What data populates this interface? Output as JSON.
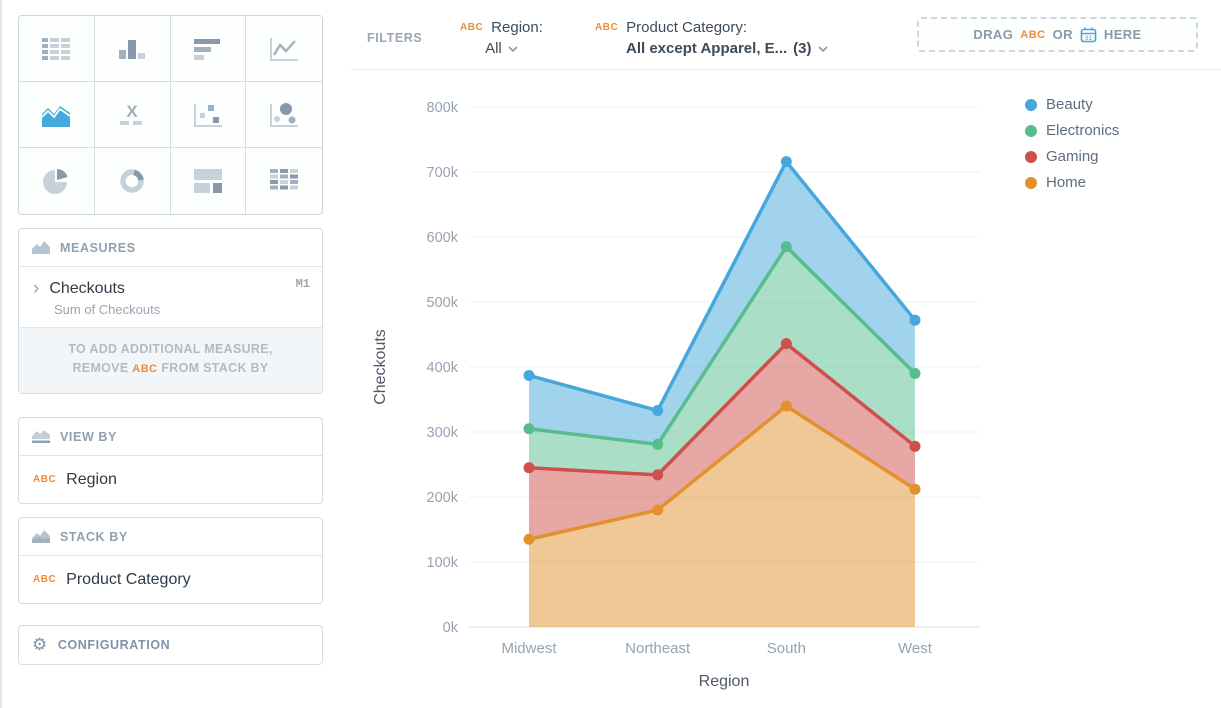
{
  "sidebar": {
    "chart_picker": {
      "types": [
        "table",
        "column-chart",
        "horizontal-bars",
        "line-chart",
        "area-chart",
        "crosstab",
        "scatter-plot",
        "bubble-chart",
        "pie-chart",
        "donut-chart",
        "treemap",
        "heat-matrix"
      ],
      "selected": "area-chart"
    },
    "measures": {
      "header": "MEASURES",
      "item": {
        "name": "Checkouts",
        "sub": "Sum of Checkouts",
        "badge": "M1",
        "chevron": "›"
      },
      "note": {
        "line1": "TO ADD ADDITIONAL MEASURE,",
        "line2_pre": "REMOVE",
        "abc": "ABC",
        "line2_post": "FROM STACK BY"
      }
    },
    "view_by": {
      "header": "VIEW BY",
      "field_type": "ABC",
      "field_name": "Region"
    },
    "stack_by": {
      "header": "STACK BY",
      "field_type": "ABC",
      "field_name": "Product Category"
    },
    "configuration": {
      "label": "CONFIGURATION"
    }
  },
  "filters": {
    "label": "FILTERS",
    "region": {
      "type": "ABC",
      "name": "Region:",
      "value": "All"
    },
    "category": {
      "type": "ABC",
      "name": "Product Category:",
      "value": "All except Apparel, E...",
      "count": "(3)"
    },
    "dropzone": {
      "drag": "DRAG",
      "abc": "ABC",
      "or": "OR",
      "here": "HERE",
      "calendar_day": "31"
    }
  },
  "chart_data": {
    "type": "area",
    "stacked": true,
    "xlabel": "Region",
    "ylabel": "Checkouts",
    "categories": [
      "Midwest",
      "Northeast",
      "South",
      "West"
    ],
    "series": [
      {
        "name": "Home",
        "color": "#e2912e",
        "values": [
          135000,
          180000,
          340000,
          212000
        ]
      },
      {
        "name": "Gaming",
        "color": "#ce4f4b",
        "values": [
          110000,
          54000,
          96000,
          66000
        ]
      },
      {
        "name": "Electronics",
        "color": "#57bd8e",
        "values": [
          60000,
          47000,
          149000,
          112000
        ]
      },
      {
        "name": "Beauty",
        "color": "#45a7db",
        "values": [
          82000,
          52000,
          131000,
          82000
        ]
      }
    ],
    "stack_totals": {
      "Midwest": {
        "Home": 135000,
        "Gaming": 245000,
        "Electronics": 305000,
        "Beauty": 387000
      },
      "Northeast": {
        "Home": 180000,
        "Gaming": 234000,
        "Electronics": 281000,
        "Beauty": 333000
      },
      "South": {
        "Home": 340000,
        "Gaming": 436000,
        "Electronics": 585000,
        "Beauty": 716000
      },
      "West": {
        "Home": 212000,
        "Gaming": 278000,
        "Electronics": 390000,
        "Beauty": 472000
      }
    },
    "ylim": [
      0,
      800000
    ],
    "ytick_step": 100000,
    "ytick_labels": [
      "0k",
      "100k",
      "200k",
      "300k",
      "400k",
      "500k",
      "600k",
      "700k",
      "800k"
    ],
    "grid": true,
    "legend_position": "right",
    "legend": [
      {
        "label": "Beauty",
        "color": "#45a7db"
      },
      {
        "label": "Electronics",
        "color": "#57bd8e"
      },
      {
        "label": "Gaming",
        "color": "#ce4f4b"
      },
      {
        "label": "Home",
        "color": "#e2912e"
      }
    ]
  }
}
